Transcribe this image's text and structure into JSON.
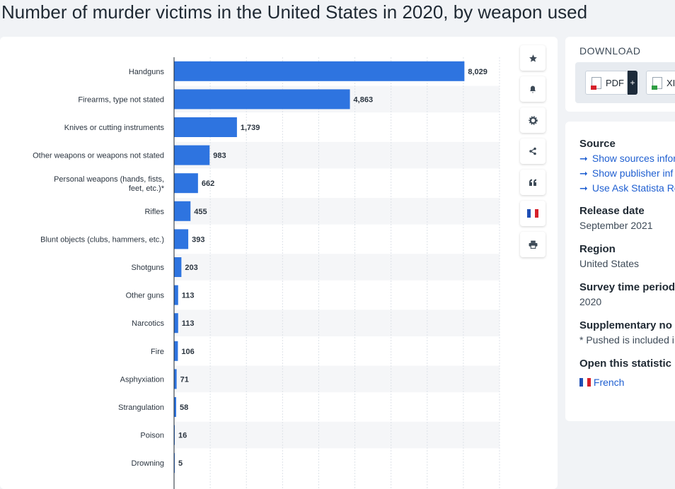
{
  "page_title": "Number of murder victims in the United States in 2020, by weapon used",
  "toolbar": {
    "buttons": [
      {
        "icon": "star-icon"
      },
      {
        "icon": "bell-icon"
      },
      {
        "icon": "gear-icon"
      },
      {
        "icon": "share-icon"
      },
      {
        "icon": "quote-icon"
      },
      {
        "icon": "french-flag-icon"
      },
      {
        "icon": "print-icon"
      }
    ]
  },
  "download": {
    "title": "DOWNLOAD",
    "pdf_label": "PDF",
    "pdf_plus": "+",
    "xls_label": "XI"
  },
  "info": {
    "source_heading": "Source",
    "source_links": [
      "Show sources infor",
      "Show publisher inf",
      "Use Ask Statista Re"
    ],
    "release_heading": "Release date",
    "release_value": "September 2021",
    "region_heading": "Region",
    "region_value": "United States",
    "survey_heading": "Survey time period",
    "survey_value": "2020",
    "supp_heading": "Supplementary no",
    "supp_value": "* Pushed is included i",
    "open_heading": "Open this statistic",
    "open_link": "French"
  },
  "colors": {
    "bar": "#2e74e0",
    "stripe": "#f5f6f8",
    "grid": "#dde2e8"
  },
  "chart_data": {
    "type": "bar",
    "orientation": "horizontal",
    "title": "Number of murder victims in the United States in 2020, by weapon used",
    "categories": [
      "Handguns",
      "Firearms, type not stated",
      "Knives or cutting instruments",
      "Other weapons or weapons not stated",
      "Personal weapons (hands, fists, feet, etc.)*",
      "Rifles",
      "Blunt objects (clubs, hammers, etc.)",
      "Shotguns",
      "Other guns",
      "Narcotics",
      "Fire",
      "Asphyxiation",
      "Strangulation",
      "Poison",
      "Drowning"
    ],
    "values": [
      8029,
      4863,
      1739,
      983,
      662,
      455,
      393,
      203,
      113,
      113,
      106,
      71,
      58,
      16,
      5
    ],
    "value_labels": [
      "8,029",
      "4,863",
      "1,739",
      "983",
      "662",
      "455",
      "393",
      "203",
      "113",
      "113",
      "106",
      "71",
      "58",
      "16",
      "5"
    ],
    "xlim": [
      0,
      9000
    ],
    "grid": true
  }
}
